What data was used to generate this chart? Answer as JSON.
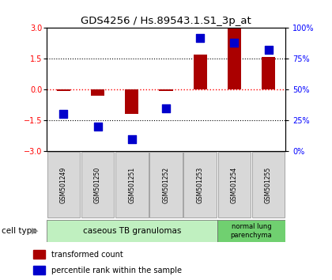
{
  "title": "GDS4256 / Hs.89543.1.S1_3p_at",
  "samples": [
    "GSM501249",
    "GSM501250",
    "GSM501251",
    "GSM501252",
    "GSM501253",
    "GSM501254",
    "GSM501255"
  ],
  "red_bars": [
    -0.05,
    -0.3,
    -1.2,
    -0.05,
    1.7,
    3.0,
    1.6
  ],
  "blue_pct": [
    30,
    20,
    10,
    35,
    92,
    88,
    82
  ],
  "ylim_left": [
    -3,
    3
  ],
  "ylim_right": [
    0,
    100
  ],
  "yticks_left": [
    -3,
    -1.5,
    0,
    1.5,
    3
  ],
  "yticks_right": [
    0,
    25,
    50,
    75,
    100
  ],
  "ytick_labels_right": [
    "0%",
    "25%",
    "50%",
    "75%",
    "100%"
  ],
  "cell_groups": [
    {
      "label": "caseous TB granulomas",
      "color": "#c0f0c0",
      "start": 0,
      "end": 4
    },
    {
      "label": "normal lung\nparenchyma",
      "color": "#70d070",
      "start": 5,
      "end": 6
    }
  ],
  "bar_color": "#aa0000",
  "dot_color": "#0000cc",
  "bar_width": 0.4,
  "dot_size": 45,
  "legend_red_label": "transformed count",
  "legend_blue_label": "percentile rank within the sample",
  "cell_type_label": "cell type",
  "background_color": "#ffffff",
  "plot_bg": "#ffffff",
  "sample_box_bg": "#d8d8d8"
}
